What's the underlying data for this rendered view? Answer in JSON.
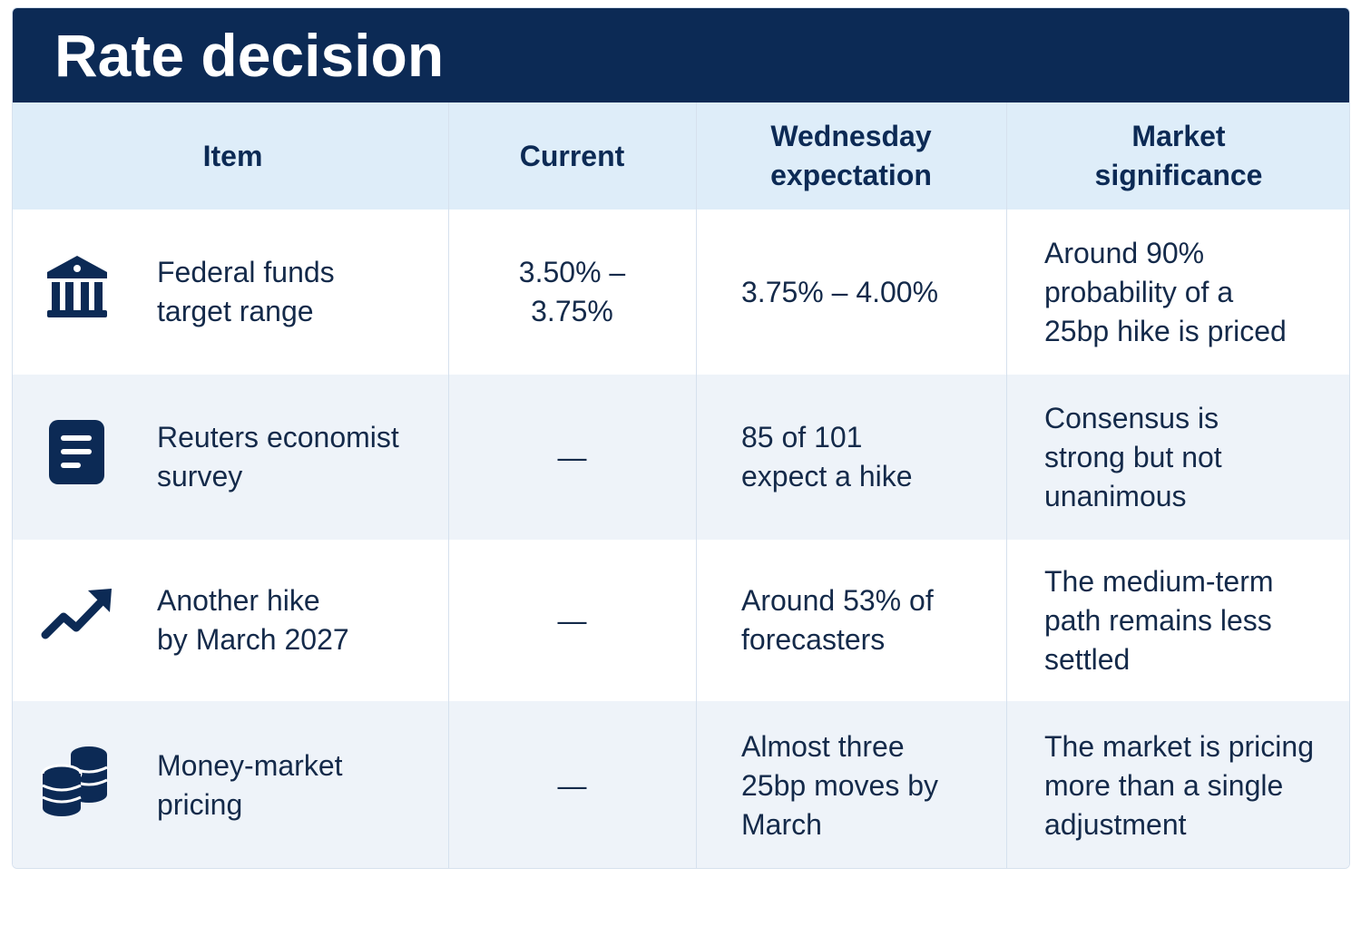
{
  "header": {
    "title": "Rate decision"
  },
  "table": {
    "columns": [
      [
        "Item"
      ],
      [
        "Current"
      ],
      [
        "Wednesday",
        "expectation"
      ],
      [
        "Market",
        "significance"
      ]
    ],
    "rows": [
      {
        "item": [
          "Federal funds",
          "target range"
        ],
        "current": [
          "3.50% –",
          "3.75%"
        ],
        "expectation": [
          "3.75% – 4.00%"
        ],
        "significance": [
          "Around 90%",
          "probability of a",
          "25bp hike is priced"
        ]
      },
      {
        "item": [
          "Reuters economist",
          "survey"
        ],
        "current": [
          "—"
        ],
        "expectation": [
          "85 of 101",
          "expect a hike"
        ],
        "significance": [
          "Consensus is",
          "strong but not",
          "unanimous"
        ]
      },
      {
        "item": [
          "Another hike",
          "by March 2027"
        ],
        "current": [
          "—"
        ],
        "expectation": [
          "Around 53% of",
          "forecasters"
        ],
        "significance": [
          "The medium-term",
          "path remains less",
          "settled"
        ]
      },
      {
        "item": [
          "Money-market",
          "pricing"
        ],
        "current": [
          "—"
        ],
        "expectation": [
          "Almost three",
          "25bp moves by",
          "March"
        ],
        "significance": [
          "The market is pricing",
          "more than a single",
          "adjustment"
        ]
      }
    ]
  }
}
